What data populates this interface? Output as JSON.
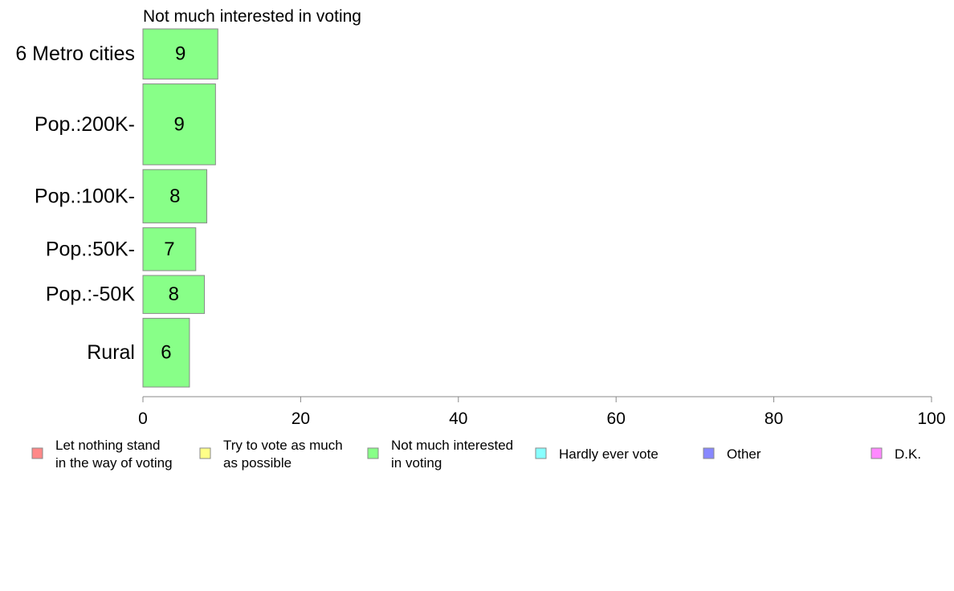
{
  "chart_data": {
    "type": "bar",
    "orientation": "horizontal",
    "title": "Not much interested in voting",
    "categories": [
      "6 Metro cities",
      "Pop.:200K-",
      "Pop.:100K-",
      "Pop.:50K-",
      "Pop.:-50K",
      "Rural"
    ],
    "values": [
      9.5,
      9.2,
      8.1,
      6.7,
      7.8,
      5.9
    ],
    "value_labels": [
      "9",
      "9",
      "8",
      "7",
      "8",
      "6"
    ],
    "band_weights": [
      0.62,
      1.0,
      0.66,
      0.53,
      0.47,
      0.85
    ],
    "xlim": [
      0,
      100
    ],
    "xticks": [
      0,
      20,
      40,
      60,
      80,
      100
    ],
    "xtick_labels": [
      "0",
      "20",
      "40",
      "60",
      "80",
      "100"
    ],
    "bar_color": "#88ff88",
    "bar_stroke": "#888888",
    "legend": {
      "position": "bottom",
      "entries": [
        {
          "lines": [
            "Let nothing stand",
            "in the way of voting"
          ],
          "color": "#ff8888"
        },
        {
          "lines": [
            "Try to vote as much",
            "as possible"
          ],
          "color": "#ffff88"
        },
        {
          "lines": [
            "Not much interested",
            "in voting"
          ],
          "color": "#88ff88"
        },
        {
          "lines": [
            "Hardly ever vote"
          ],
          "color": "#88ffff"
        },
        {
          "lines": [
            "Other"
          ],
          "color": "#8888ff"
        },
        {
          "lines": [
            "D.K."
          ],
          "color": "#ff88ff"
        }
      ]
    }
  }
}
